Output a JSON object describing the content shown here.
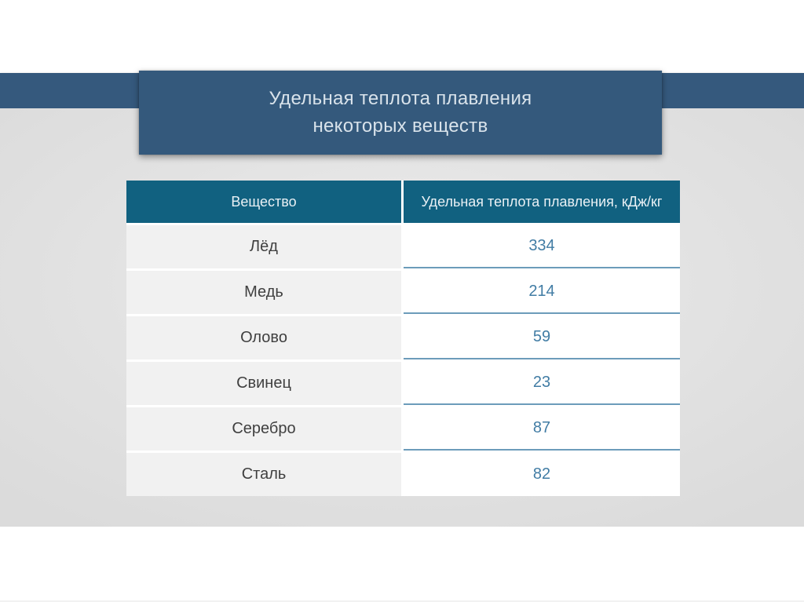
{
  "slide": {
    "title_line1": "Удельная теплота плавления",
    "title_line2": "некоторых веществ"
  },
  "table": {
    "headers": [
      "Вещество",
      "Удельная теплота плавления, кДж/кг"
    ],
    "rows": [
      {
        "substance": "Лёд",
        "value": "334"
      },
      {
        "substance": "Медь",
        "value": "214"
      },
      {
        "substance": "Олово",
        "value": "59"
      },
      {
        "substance": "Свинец",
        "value": "23"
      },
      {
        "substance": "Серебро",
        "value": "87"
      },
      {
        "substance": "Сталь",
        "value": "82"
      }
    ]
  },
  "colors": {
    "accent_band": "#35597D",
    "title_box": "#34597C",
    "table_header": "#116180",
    "row_label_bg": "#F1F1F1",
    "value_text": "#417CA4",
    "underline": "#6C9CBA",
    "content_bg": "#E2E2E2"
  },
  "chart_data": {
    "type": "table",
    "title": "Удельная теплота плавления некоторых веществ",
    "columns": [
      "Вещество",
      "Удельная теплота плавления, кДж/кг"
    ],
    "rows": [
      [
        "Лёд",
        334
      ],
      [
        "Медь",
        214
      ],
      [
        "Олово",
        59
      ],
      [
        "Свинец",
        23
      ],
      [
        "Серебро",
        87
      ],
      [
        "Сталь",
        82
      ]
    ]
  }
}
